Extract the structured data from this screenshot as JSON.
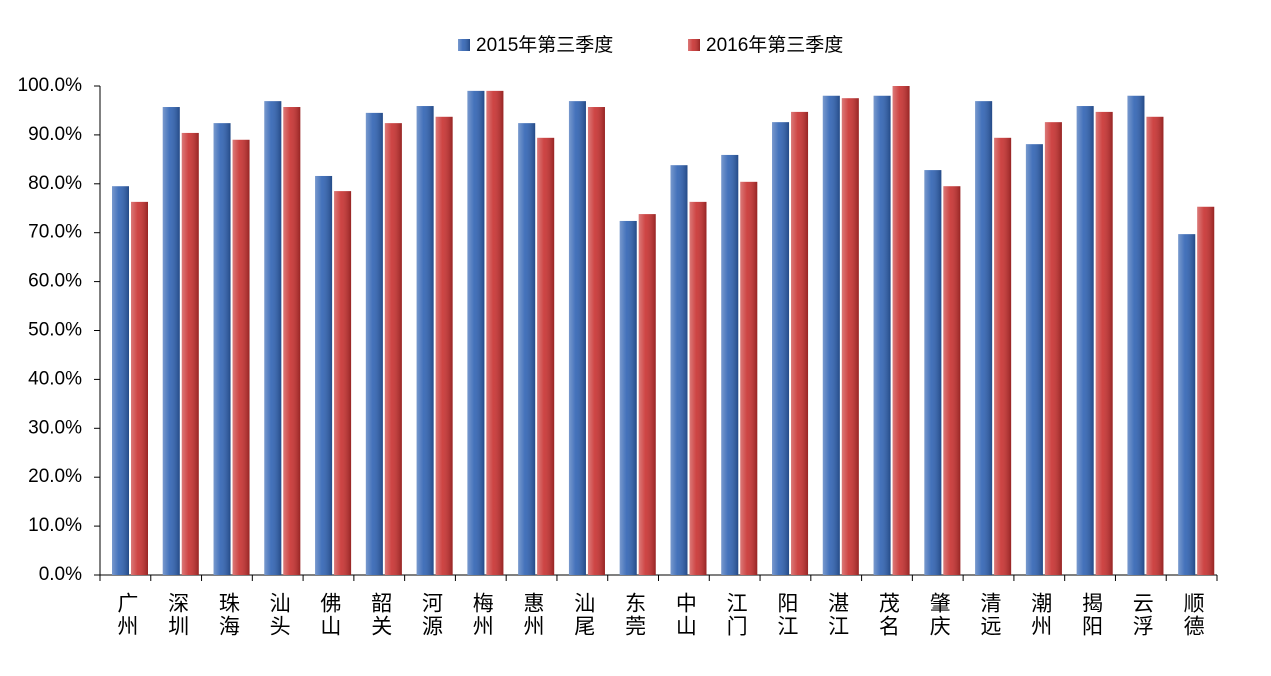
{
  "chart_data": {
    "type": "bar",
    "categories": [
      "广州",
      "深圳",
      "珠海",
      "汕头",
      "佛山",
      "韶关",
      "河源",
      "梅州",
      "惠州",
      "汕尾",
      "东莞",
      "中山",
      "江门",
      "阳江",
      "湛江",
      "茂名",
      "肇庆",
      "清远",
      "潮州",
      "揭阳",
      "云浮",
      "顺德"
    ],
    "series": [
      {
        "name": "2015年第三季度",
        "color": "#2f62b3",
        "values": [
          79.5,
          95.7,
          92.4,
          96.9,
          81.6,
          94.5,
          95.9,
          99.0,
          92.4,
          96.9,
          72.4,
          83.8,
          85.9,
          92.6,
          98.0,
          98.0,
          82.8,
          96.9,
          88.1,
          95.9,
          98.0,
          69.7
        ]
      },
      {
        "name": "2016年第三季度",
        "color": "#c8302f",
        "values": [
          76.3,
          90.4,
          89.0,
          95.7,
          78.5,
          92.4,
          93.7,
          99.0,
          89.4,
          95.7,
          73.8,
          76.3,
          80.4,
          94.7,
          97.5,
          100.0,
          79.5,
          89.4,
          92.6,
          94.7,
          93.7,
          75.3
        ]
      }
    ],
    "ylim": [
      0,
      100
    ],
    "yticks": [
      {
        "value": 0,
        "label": "0.0%"
      },
      {
        "value": 10,
        "label": "10.0%"
      },
      {
        "value": 20,
        "label": "20.0%"
      },
      {
        "value": 30,
        "label": "30.0%"
      },
      {
        "value": 40,
        "label": "40.0%"
      },
      {
        "value": 50,
        "label": "50.0%"
      },
      {
        "value": 60,
        "label": "60.0%"
      },
      {
        "value": 70,
        "label": "70.0%"
      },
      {
        "value": 80,
        "label": "80.0%"
      },
      {
        "value": 90,
        "label": "90.0%"
      },
      {
        "value": 100,
        "label": "100.0%"
      }
    ],
    "legend": "top"
  }
}
